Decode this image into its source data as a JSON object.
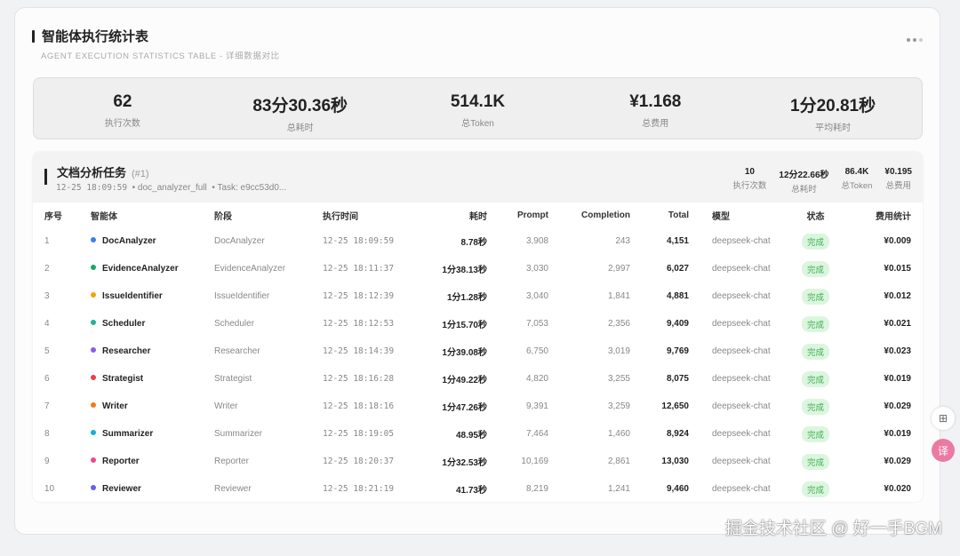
{
  "header": {
    "title": "智能体执行统计表",
    "subtitle": "AGENT EXECUTION STATISTICS TABLE - 详细数据对比"
  },
  "summary": [
    {
      "value": "62",
      "label": "执行次数"
    },
    {
      "value": "83分30.36秒",
      "label": "总耗时"
    },
    {
      "value": "514.1K",
      "label": "总Token"
    },
    {
      "value": "¥1.168",
      "label": "总费用"
    },
    {
      "value": "1分20.81秒",
      "label": "平均耗时"
    }
  ],
  "task": {
    "name": "文档分析任务",
    "id": "(#1)",
    "time": "12-25 18:09:59",
    "workflow": "• doc_analyzer_full",
    "task_id": "• Task: e9cc53d0...",
    "stats": [
      {
        "value": "10",
        "label": "执行次数"
      },
      {
        "value": "12分22.66秒",
        "label": "总耗时"
      },
      {
        "value": "86.4K",
        "label": "总Token"
      },
      {
        "value": "¥0.195",
        "label": "总费用"
      }
    ]
  },
  "columns": [
    "序号",
    "智能体",
    "阶段",
    "执行时间",
    "耗时",
    "Prompt",
    "Completion",
    "Total",
    "模型",
    "状态",
    "费用统计"
  ],
  "rows": [
    {
      "n": "1",
      "agent": "DocAnalyzer",
      "color": "#3b7ef0",
      "stage": "DocAnalyzer",
      "time": "12-25 18:09:59",
      "dur": "8.78秒",
      "prompt": "3,908",
      "comp": "243",
      "total": "4,151",
      "model": "deepseek-chat",
      "status": "完成",
      "cost": "¥0.009"
    },
    {
      "n": "2",
      "agent": "EvidenceAnalyzer",
      "color": "#1aa86a",
      "stage": "EvidenceAnalyzer",
      "time": "12-25 18:11:37",
      "dur": "1分38.13秒",
      "prompt": "3,030",
      "comp": "2,997",
      "total": "6,027",
      "model": "deepseek-chat",
      "status": "完成",
      "cost": "¥0.015"
    },
    {
      "n": "3",
      "agent": "IssueIdentifier",
      "color": "#f2a20c",
      "stage": "IssueIdentifier",
      "time": "12-25 18:12:39",
      "dur": "1分1.28秒",
      "prompt": "3,040",
      "comp": "1,841",
      "total": "4,881",
      "model": "deepseek-chat",
      "status": "完成",
      "cost": "¥0.012"
    },
    {
      "n": "4",
      "agent": "Scheduler",
      "color": "#1db394",
      "stage": "Scheduler",
      "time": "12-25 18:12:53",
      "dur": "1分15.70秒",
      "prompt": "7,053",
      "comp": "2,356",
      "total": "9,409",
      "model": "deepseek-chat",
      "status": "完成",
      "cost": "¥0.021"
    },
    {
      "n": "5",
      "agent": "Researcher",
      "color": "#8a5cf0",
      "stage": "Researcher",
      "time": "12-25 18:14:39",
      "dur": "1分39.08秒",
      "prompt": "6,750",
      "comp": "3,019",
      "total": "9,769",
      "model": "deepseek-chat",
      "status": "完成",
      "cost": "¥0.023"
    },
    {
      "n": "6",
      "agent": "Strategist",
      "color": "#ec4048",
      "stage": "Strategist",
      "time": "12-25 18:16:28",
      "dur": "1分49.22秒",
      "prompt": "4,820",
      "comp": "3,255",
      "total": "8,075",
      "model": "deepseek-chat",
      "status": "完成",
      "cost": "¥0.019"
    },
    {
      "n": "7",
      "agent": "Writer",
      "color": "#f5781a",
      "stage": "Writer",
      "time": "12-25 18:18:16",
      "dur": "1分47.26秒",
      "prompt": "9,391",
      "comp": "3,259",
      "total": "12,650",
      "model": "deepseek-chat",
      "status": "完成",
      "cost": "¥0.029"
    },
    {
      "n": "8",
      "agent": "Summarizer",
      "color": "#14b0d8",
      "stage": "Summarizer",
      "time": "12-25 18:19:05",
      "dur": "48.95秒",
      "prompt": "7,464",
      "comp": "1,460",
      "total": "8,924",
      "model": "deepseek-chat",
      "status": "完成",
      "cost": "¥0.019"
    },
    {
      "n": "9",
      "agent": "Reporter",
      "color": "#ec4a8a",
      "stage": "Reporter",
      "time": "12-25 18:20:37",
      "dur": "1分32.53秒",
      "prompt": "10,169",
      "comp": "2,861",
      "total": "13,030",
      "model": "deepseek-chat",
      "status": "完成",
      "cost": "¥0.029"
    },
    {
      "n": "10",
      "agent": "Reviewer",
      "color": "#6a5cf0",
      "stage": "Reviewer",
      "time": "12-25 18:21:19",
      "dur": "41.73秒",
      "prompt": "8,219",
      "comp": "1,241",
      "total": "9,460",
      "model": "deepseek-chat",
      "status": "完成",
      "cost": "¥0.020"
    }
  ],
  "side": {
    "apps_icon": "⊞",
    "translate_icon": "译"
  },
  "watermark": "掘金技术社区 @ 好一手BGM"
}
